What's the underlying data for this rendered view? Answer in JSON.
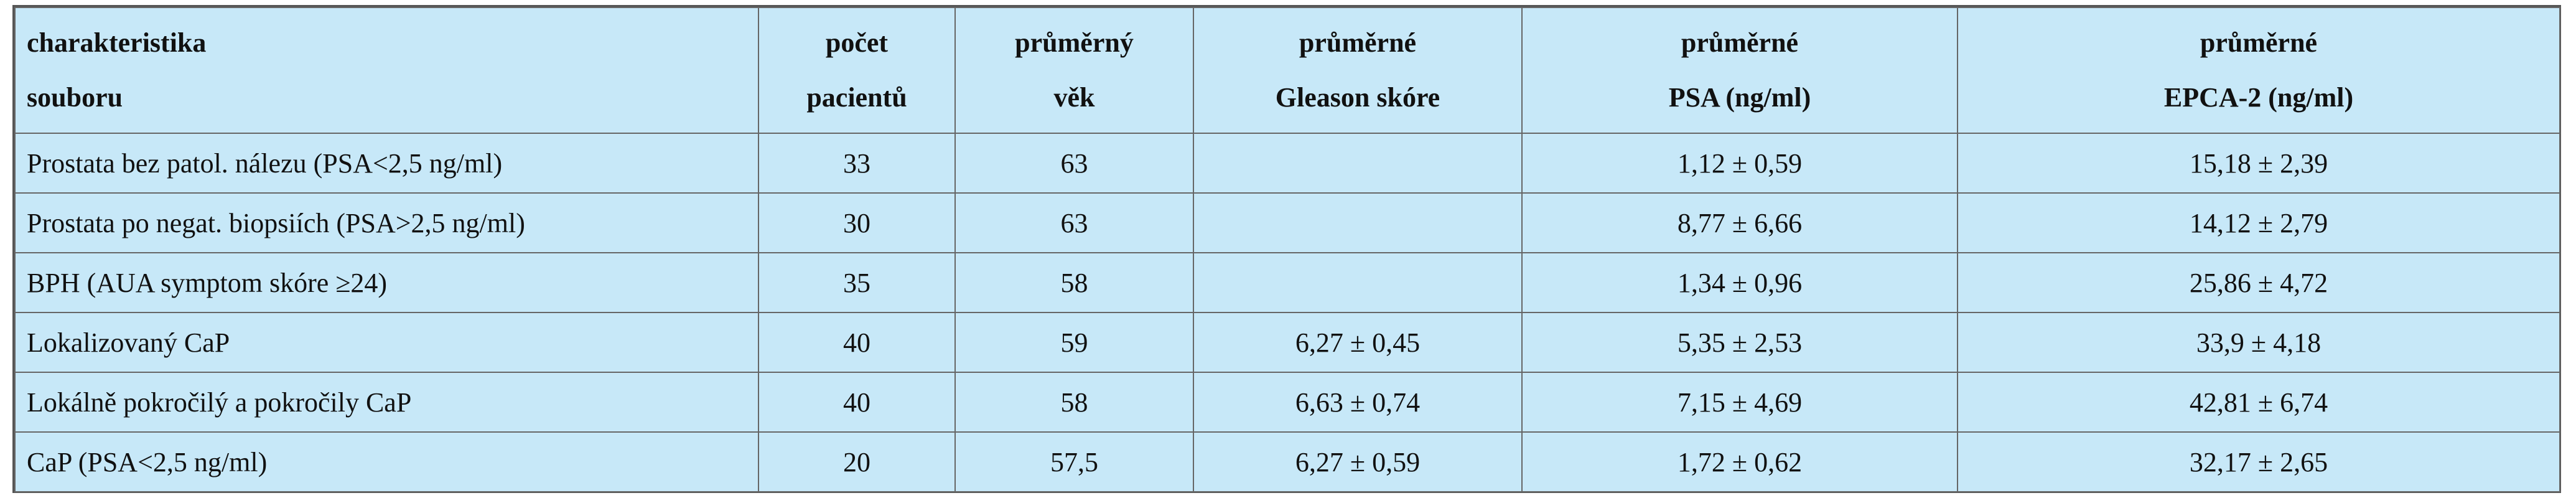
{
  "table": {
    "header": [
      [
        "charakteristika",
        "souboru"
      ],
      [
        "počet",
        "pacientů"
      ],
      [
        "průměrný",
        "věk"
      ],
      [
        "průměrné",
        "Gleason skóre"
      ],
      [
        "průměrné",
        "PSA (ng/ml)"
      ],
      [
        "průměrné",
        "EPCA-2 (ng/ml)"
      ]
    ],
    "rows": [
      [
        "Prostata bez patol. nálezu (PSA<2,5 ng/ml)",
        "33",
        "63",
        null,
        "1,12 ± 0,59",
        "15,18 ± 2,39"
      ],
      [
        "Prostata po negat. biopsiích (PSA>2,5 ng/ml)",
        "30",
        "63",
        null,
        "8,77 ± 6,66",
        "14,12 ± 2,79"
      ],
      [
        "BPH (AUA symptom skóre ≥24)",
        "35",
        "58",
        null,
        "1,34 ± 0,96",
        "25,86 ± 4,72"
      ],
      [
        "Lokalizovaný CaP",
        "40",
        "59",
        "6,27 ± 0,45",
        "5,35 ± 2,53",
        "33,9 ± 4,18"
      ],
      [
        "Lokálně pokročilý a pokročily CaP",
        "40",
        "58",
        "6,63 ± 0,74",
        "7,15 ± 4,69",
        "42,81 ± 6,74"
      ],
      [
        "CaP (PSA<2,5 ng/ml)",
        "20",
        "57,5",
        "6,27 ± 0,59",
        "1,72 ± 0,62",
        "32,17 ± 2,65"
      ]
    ]
  }
}
